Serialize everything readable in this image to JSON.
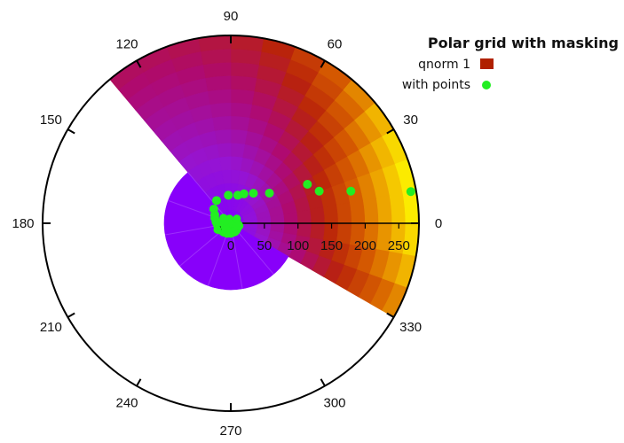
{
  "chart_data": {
    "type": "scatter",
    "title": "Polar grid with masking",
    "coordinate_system": "polar",
    "angle_ticks": [
      "0",
      "30",
      "60",
      "90",
      "120",
      "150",
      "180",
      "210",
      "240",
      "270",
      "300",
      "330"
    ],
    "r_ticks": [
      "0",
      "50",
      "100",
      "150",
      "200",
      "250"
    ],
    "r_range": [
      0,
      280
    ],
    "legend": {
      "placement": "top-right"
    },
    "colors": {
      "heatmap_key": "#b02000",
      "points": "#22ee22"
    },
    "series": [
      {
        "name": "qnorm 1",
        "kind": "masked polar heatmap",
        "angle_extent_deg": [
          -30,
          130
        ],
        "r_extent": [
          0,
          280
        ]
      },
      {
        "name": "with points",
        "kind": "points",
        "points": [
          {
            "theta": 10,
            "r": 272
          },
          {
            "theta": 15,
            "r": 185
          },
          {
            "theta": 20,
            "r": 140
          },
          {
            "theta": 27,
            "r": 128
          },
          {
            "theta": 38,
            "r": 73
          },
          {
            "theta": 53,
            "r": 56
          },
          {
            "theta": 66,
            "r": 48
          },
          {
            "theta": 76,
            "r": 43
          },
          {
            "theta": 95,
            "r": 42
          },
          {
            "theta": 122,
            "r": 40
          },
          {
            "theta": 140,
            "r": 33
          },
          {
            "theta": 152,
            "r": 27
          },
          {
            "theta": 162,
            "r": 25
          },
          {
            "theta": 175,
            "r": 22
          },
          {
            "theta": 188,
            "r": 20
          },
          {
            "theta": 200,
            "r": 19
          },
          {
            "theta": 215,
            "r": 18
          },
          {
            "theta": 232,
            "r": 17
          },
          {
            "theta": 250,
            "r": 16
          },
          {
            "theta": 270,
            "r": 15
          },
          {
            "theta": 290,
            "r": 14
          },
          {
            "theta": 310,
            "r": 13
          },
          {
            "theta": 330,
            "r": 12
          },
          {
            "theta": 350,
            "r": 11
          }
        ]
      }
    ]
  }
}
